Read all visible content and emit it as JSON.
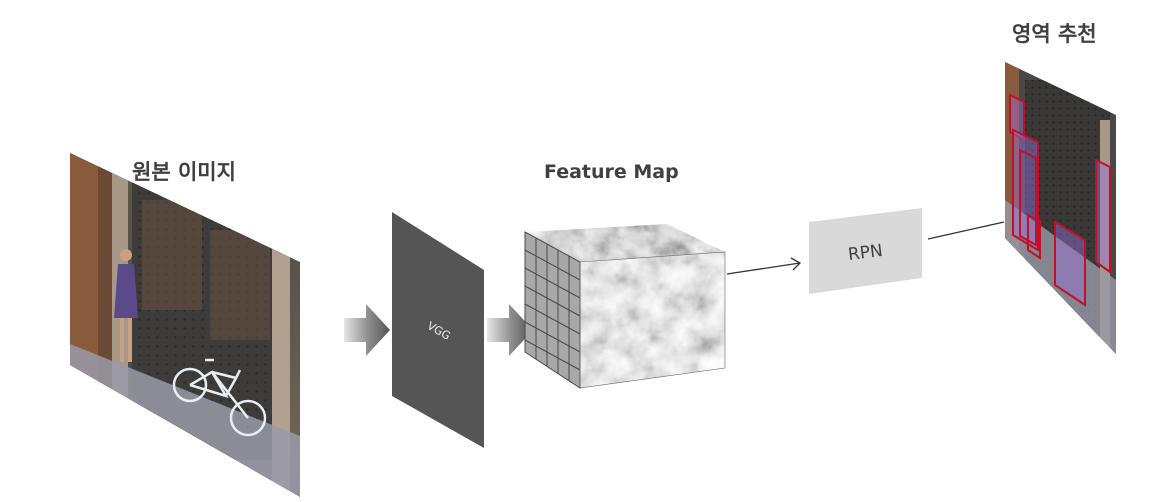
{
  "labels": {
    "original_image": "원본 이미지",
    "feature_map": "Feature Map",
    "region_proposal": "영역 추천"
  },
  "blocks": {
    "vgg": "VGG",
    "rpn": "RPN"
  },
  "colors": {
    "label_text": "#404040",
    "vgg_panel": "#555555",
    "rpn_box": "#d9d9d9",
    "rpn_text": "#404040",
    "arrow_fill": "#5a5a5a",
    "proposal_box": "#c0102a",
    "proposal_fill": "#9a6fd6",
    "connector": "#333333"
  }
}
